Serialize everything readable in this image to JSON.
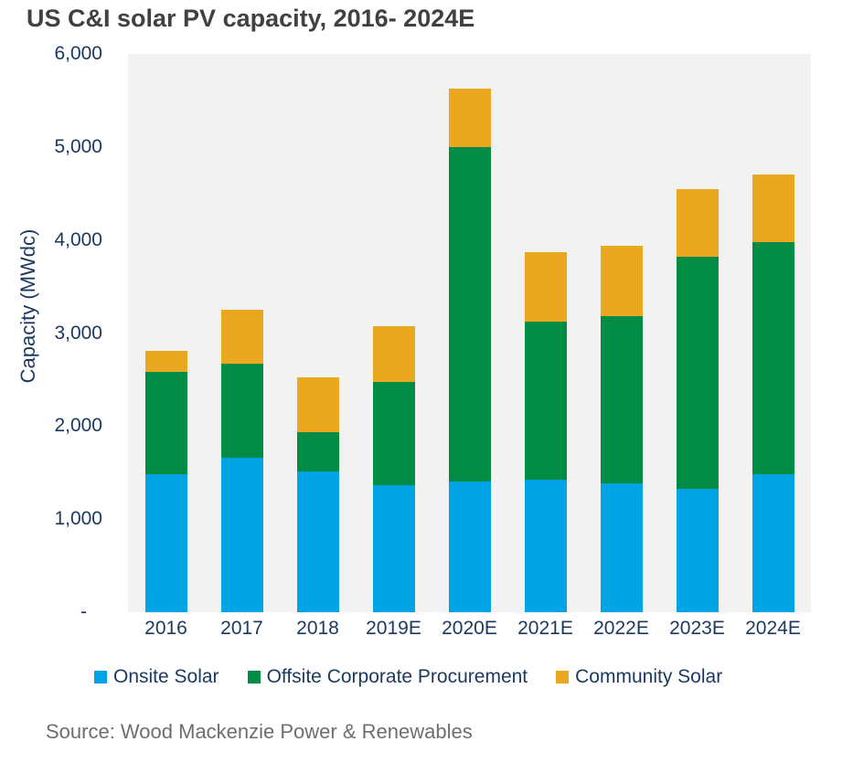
{
  "title": "US C&I solar PV capacity, 2016- 2024E",
  "source_note": "Source: Wood Mackenzie Power & Renewables",
  "colors": {
    "title_text": "#414042",
    "axis_text": "#1B395E",
    "plot_background": "#F2F2F2",
    "source_text": "#6D6E71",
    "onsite_blue": "#00A3E3",
    "offsite_green": "#008C44",
    "community_yellow": "#E9A820"
  },
  "chart_data": {
    "type": "bar",
    "stacked": true,
    "title": "US C&I solar PV capacity, 2016- 2024E",
    "xlabel": "",
    "ylabel": "Capacity (MWdc)",
    "ylim": [
      0,
      6000
    ],
    "y_ticks": [
      "6,000",
      "5,000",
      "4,000",
      "3,000",
      "2,000",
      "1,000",
      "-"
    ],
    "y_tick_values": [
      6000,
      5000,
      4000,
      3000,
      2000,
      1000,
      0
    ],
    "grid": false,
    "legend_position": "bottom",
    "plot_background": "#F2F2F2",
    "categories": [
      "2016",
      "2017",
      "2018",
      "2019E",
      "2020E",
      "2021E",
      "2022E",
      "2023E",
      "2024E"
    ],
    "series": [
      {
        "name": "Onsite Solar",
        "color": "#00A3E3",
        "values": [
          1480,
          1660,
          1515,
          1370,
          1400,
          1420,
          1380,
          1330,
          1480
        ]
      },
      {
        "name": "Offsite Corporate Procurement",
        "color": "#008C44",
        "values": [
          1100,
          1010,
          415,
          1100,
          3600,
          1700,
          1800,
          2490,
          2500
        ]
      },
      {
        "name": "Community Solar",
        "color": "#E9A820",
        "values": [
          230,
          580,
          590,
          600,
          630,
          750,
          760,
          730,
          720
        ]
      }
    ],
    "totals": [
      2810,
      3250,
      2520,
      3070,
      5630,
      3870,
      3940,
      4550,
      4700
    ]
  }
}
